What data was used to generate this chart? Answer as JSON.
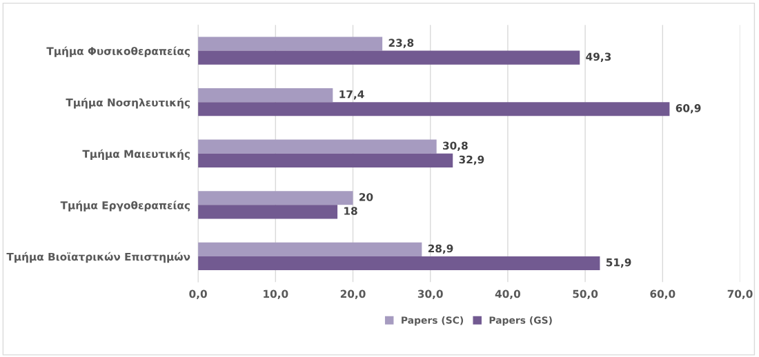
{
  "chart_data": {
    "type": "bar",
    "orientation": "horizontal",
    "categories": [
      "Τμήμα Φυσικοθεραπείας",
      "Τμήμα Νοσηλευτικής",
      "Τμήμα Μαιευτικής",
      "Τμήμα Εργοθεραπείας",
      "Τμήμα Βιοϊατρικών Επιστημών"
    ],
    "series": [
      {
        "name": "Papers (SC)",
        "color": "#a69bc0",
        "values": [
          23.8,
          17.4,
          30.8,
          20,
          28.9
        ],
        "value_labels": [
          "23,8",
          "17,4",
          "30,8",
          "20",
          "28,9"
        ]
      },
      {
        "name": "Papers (GS)",
        "color": "#725a91",
        "values": [
          49.3,
          60.9,
          32.9,
          18,
          51.9
        ],
        "value_labels": [
          "49,3",
          "60,9",
          "32,9",
          "18",
          "51,9"
        ]
      }
    ],
    "xlim": [
      0,
      70
    ],
    "xticks": [
      {
        "value": 0,
        "label": "0,0"
      },
      {
        "value": 10,
        "label": "10,0"
      },
      {
        "value": 20,
        "label": "20,0"
      },
      {
        "value": 30,
        "label": "30,0"
      },
      {
        "value": 40,
        "label": "40,0"
      },
      {
        "value": 50,
        "label": "50,0"
      },
      {
        "value": 60,
        "label": "60,0"
      },
      {
        "value": 70,
        "label": "70,0"
      }
    ],
    "grid": "x",
    "legend": "bottom"
  }
}
